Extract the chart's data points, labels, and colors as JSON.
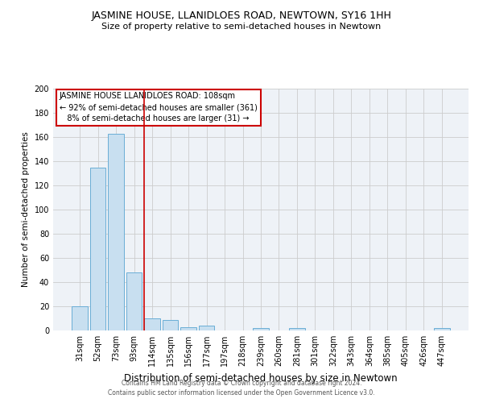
{
  "title": "JASMINE HOUSE, LLANIDLOES ROAD, NEWTOWN, SY16 1HH",
  "subtitle": "Size of property relative to semi-detached houses in Newtown",
  "xlabel": "Distribution of semi-detached houses by size in Newtown",
  "ylabel": "Number of semi-detached properties",
  "bar_labels": [
    "31sqm",
    "52sqm",
    "73sqm",
    "93sqm",
    "114sqm",
    "135sqm",
    "156sqm",
    "177sqm",
    "197sqm",
    "218sqm",
    "239sqm",
    "260sqm",
    "281sqm",
    "301sqm",
    "322sqm",
    "343sqm",
    "364sqm",
    "385sqm",
    "405sqm",
    "426sqm",
    "447sqm"
  ],
  "bar_values": [
    20,
    135,
    163,
    48,
    10,
    9,
    3,
    4,
    0,
    0,
    2,
    0,
    2,
    0,
    0,
    0,
    0,
    0,
    0,
    0,
    2
  ],
  "bar_color": "#c8dff0",
  "bar_edge_color": "#6aaed6",
  "vline_index": 4,
  "vline_color": "#cc0000",
  "annotation_line1": "JASMINE HOUSE LLANIDLOES ROAD: 108sqm",
  "annotation_line2": "← 92% of semi-detached houses are smaller (361)",
  "annotation_line3": "   8% of semi-detached houses are larger (31) →",
  "annotation_box_color": "#ffffff",
  "annotation_box_edge": "#cc0000",
  "ylim": [
    0,
    200
  ],
  "yticks": [
    0,
    20,
    40,
    60,
    80,
    100,
    120,
    140,
    160,
    180,
    200
  ],
  "footer_line1": "Contains HM Land Registry data © Crown copyright and database right 2024.",
  "footer_line2": "Contains public sector information licensed under the Open Government Licence v3.0.",
  "bg_color": "#eef2f7",
  "title_fontsize": 9,
  "subtitle_fontsize": 8,
  "ylabel_fontsize": 7.5,
  "xlabel_fontsize": 8.5,
  "tick_fontsize": 7,
  "ann_fontsize": 7,
  "footer_fontsize": 5.5
}
